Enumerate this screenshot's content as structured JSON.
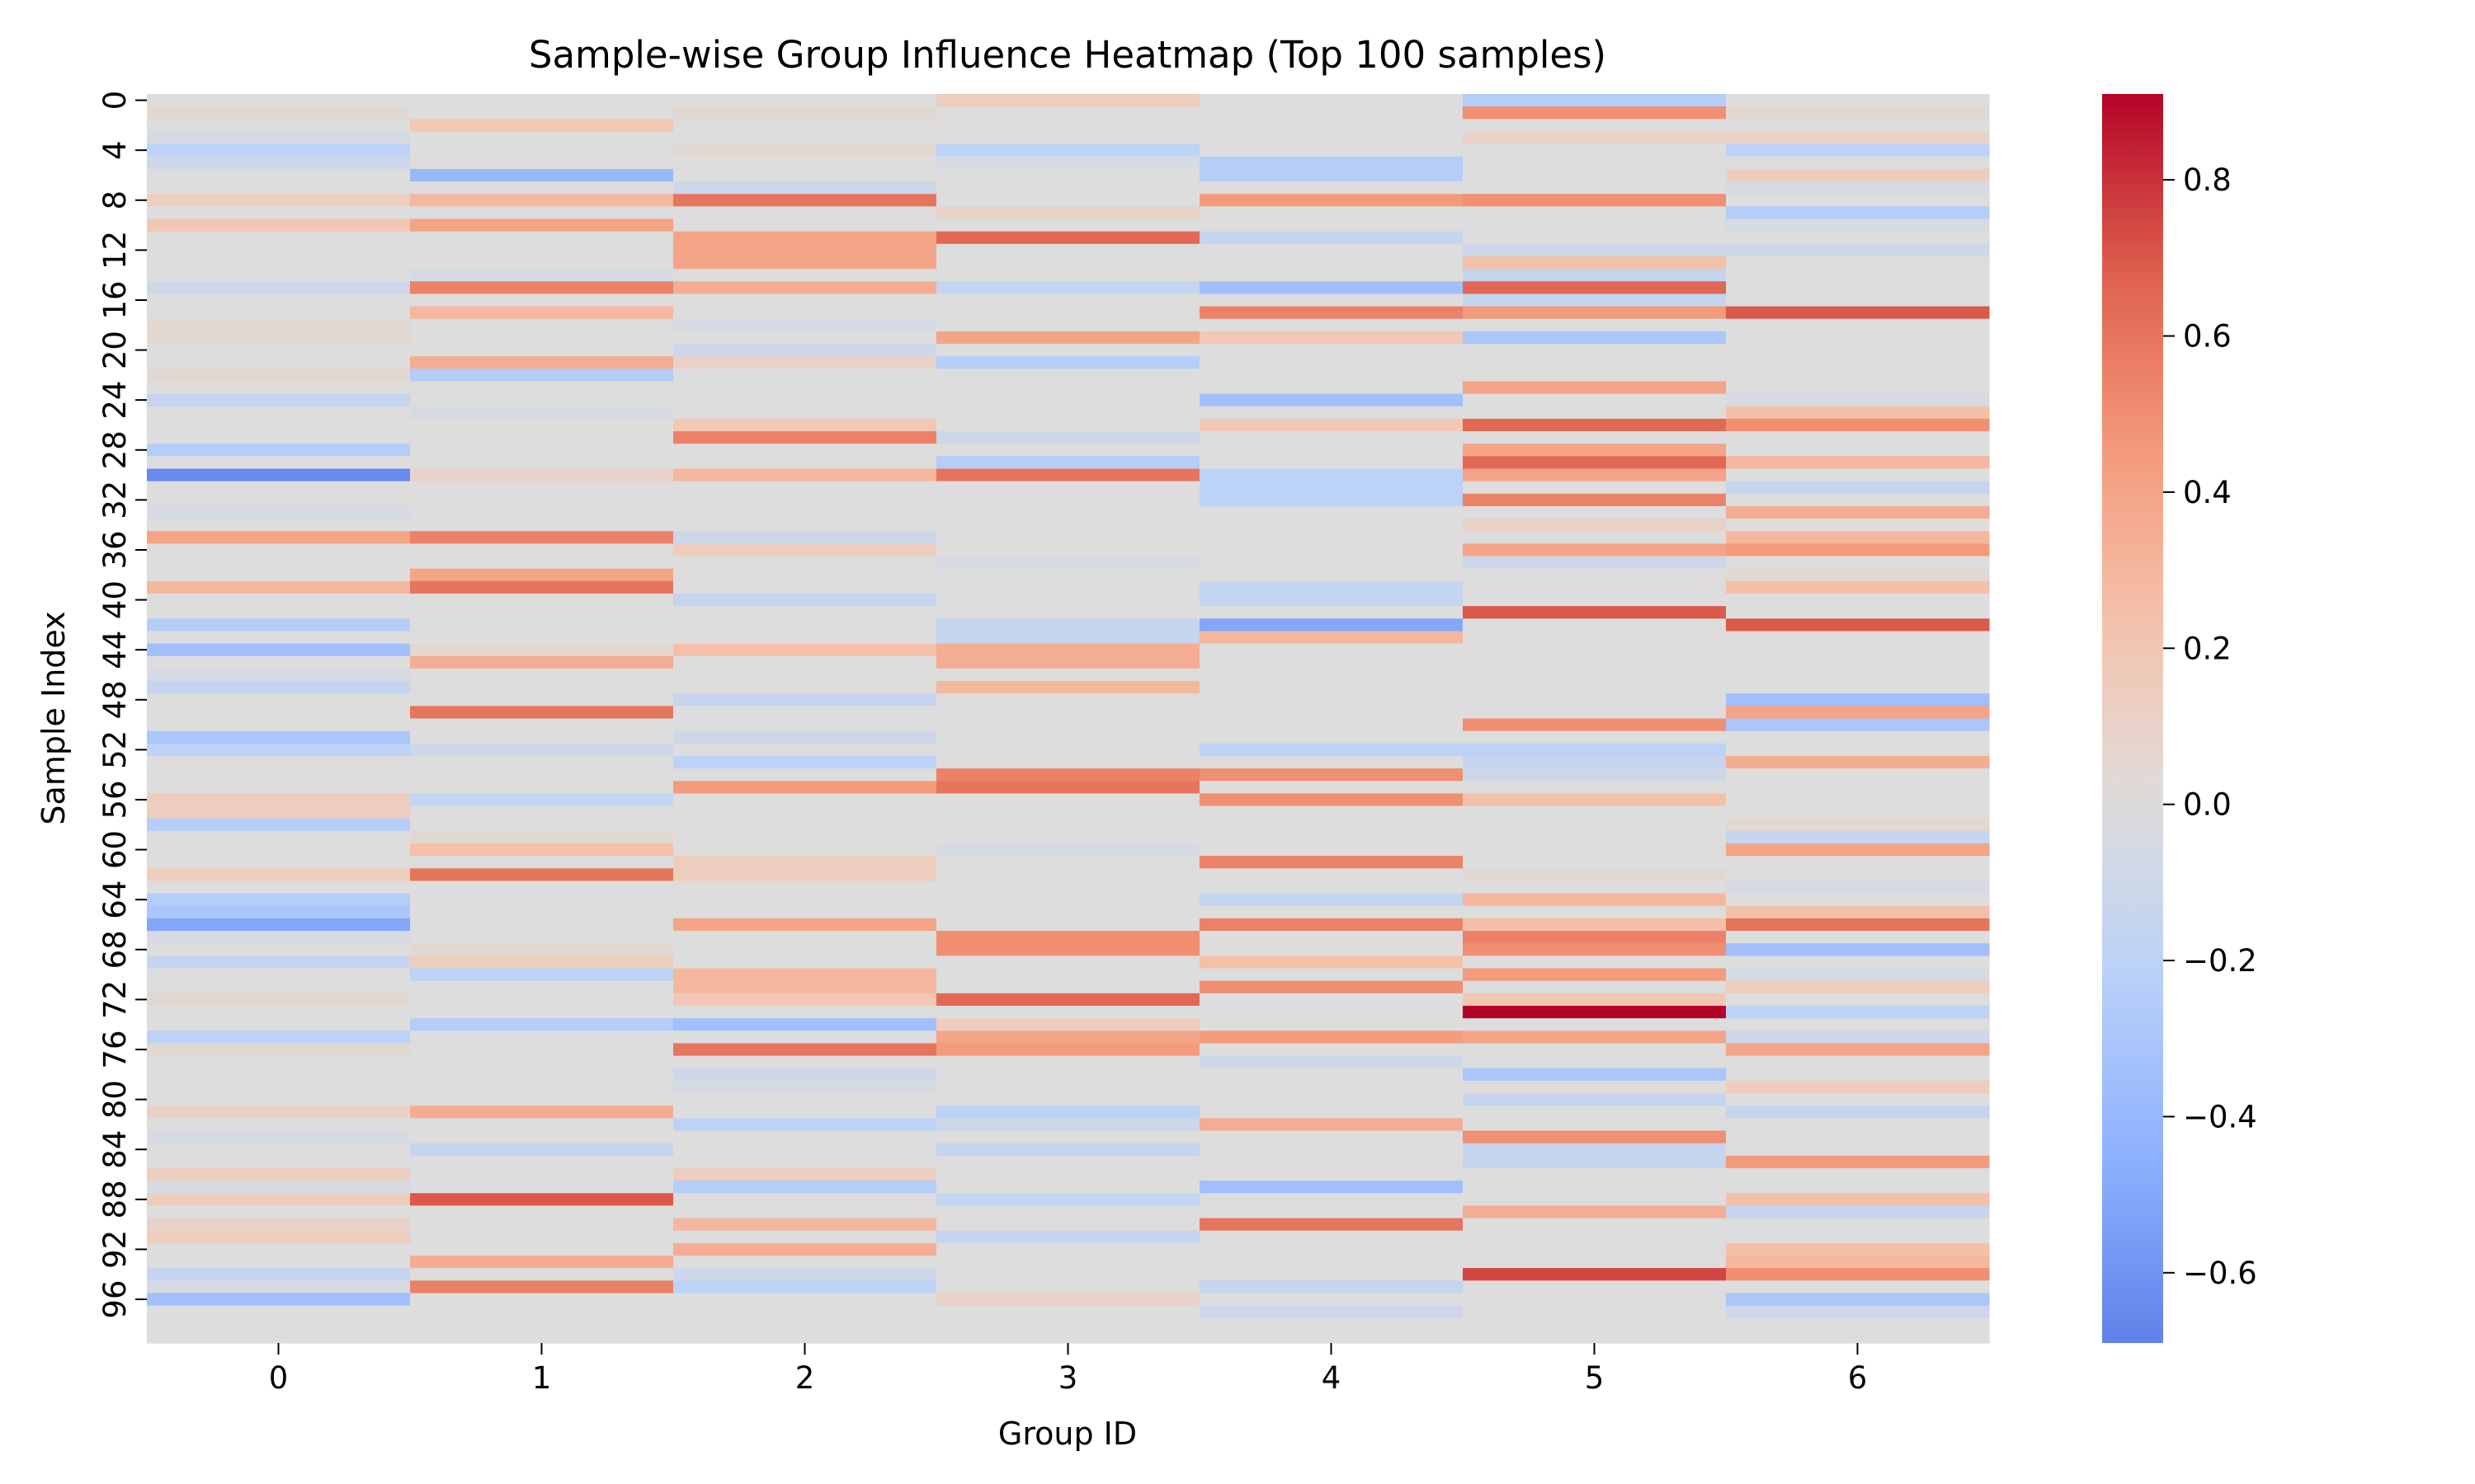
{
  "chart_data": {
    "type": "heatmap",
    "title": "Sample-wise Group Influence Heatmap (Top 100 samples)",
    "xlabel": "Group ID",
    "ylabel": "Sample Index",
    "x_categories": [
      "0",
      "1",
      "2",
      "3",
      "4",
      "5",
      "6"
    ],
    "y_tick_labels": [
      "0",
      "4",
      "8",
      "12",
      "16",
      "20",
      "24",
      "28",
      "32",
      "36",
      "40",
      "44",
      "48",
      "52",
      "56",
      "60",
      "64",
      "68",
      "72",
      "76",
      "80",
      "84",
      "88",
      "92",
      "96"
    ],
    "n_rows": 100,
    "colormap": "coolwarm",
    "center": 0.0,
    "vmin": -0.69,
    "vmax": 0.91,
    "colorbar_ticks": [
      "0.8",
      "0.6",
      "0.4",
      "0.2",
      "0.0",
      "−0.2",
      "−0.4",
      "−0.6"
    ],
    "colorbar_tick_values": [
      0.8,
      0.6,
      0.4,
      0.2,
      0.0,
      -0.2,
      -0.4,
      -0.6
    ],
    "default_value": 0.0,
    "values_sparse": [
      [
        0,
        5,
        -0.25
      ],
      [
        0,
        3,
        0.15
      ],
      [
        1,
        5,
        0.5
      ],
      [
        1,
        0,
        0.05
      ],
      [
        1,
        2,
        0.05
      ],
      [
        1,
        6,
        0.05
      ],
      [
        2,
        1,
        0.2
      ],
      [
        3,
        5,
        0.1
      ],
      [
        3,
        6,
        0.1
      ],
      [
        3,
        0,
        -0.05
      ],
      [
        4,
        0,
        -0.2
      ],
      [
        4,
        3,
        -0.2
      ],
      [
        4,
        6,
        -0.2
      ],
      [
        4,
        2,
        0.05
      ],
      [
        5,
        0,
        -0.1
      ],
      [
        5,
        4,
        -0.25
      ],
      [
        5,
        3,
        -0.05
      ],
      [
        6,
        1,
        -0.4
      ],
      [
        6,
        4,
        -0.25
      ],
      [
        6,
        6,
        0.15
      ],
      [
        7,
        2,
        -0.1
      ],
      [
        7,
        6,
        -0.05
      ],
      [
        8,
        0,
        0.15
      ],
      [
        8,
        1,
        0.3
      ],
      [
        8,
        2,
        0.6
      ],
      [
        8,
        4,
        0.45
      ],
      [
        8,
        5,
        0.5
      ],
      [
        9,
        3,
        0.1
      ],
      [
        9,
        6,
        -0.25
      ],
      [
        10,
        0,
        0.2
      ],
      [
        10,
        1,
        0.4
      ],
      [
        10,
        6,
        -0.05
      ],
      [
        11,
        3,
        0.65
      ],
      [
        11,
        2,
        0.4
      ],
      [
        11,
        4,
        -0.15
      ],
      [
        12,
        2,
        0.4
      ],
      [
        12,
        5,
        -0.1
      ],
      [
        12,
        6,
        -0.1
      ],
      [
        13,
        2,
        0.4
      ],
      [
        13,
        5,
        0.25
      ],
      [
        14,
        1,
        -0.05
      ],
      [
        14,
        5,
        -0.15
      ],
      [
        15,
        1,
        0.55
      ],
      [
        15,
        2,
        0.35
      ],
      [
        15,
        3,
        -0.15
      ],
      [
        15,
        4,
        -0.35
      ],
      [
        15,
        5,
        0.65
      ],
      [
        15,
        0,
        -0.1
      ],
      [
        16,
        5,
        -0.15
      ],
      [
        17,
        1,
        0.3
      ],
      [
        17,
        4,
        0.55
      ],
      [
        17,
        5,
        0.45
      ],
      [
        17,
        6,
        0.7
      ],
      [
        18,
        0,
        0.05
      ],
      [
        18,
        2,
        -0.05
      ],
      [
        19,
        3,
        0.4
      ],
      [
        19,
        4,
        0.2
      ],
      [
        19,
        5,
        -0.3
      ],
      [
        19,
        0,
        0.05
      ],
      [
        20,
        2,
        -0.1
      ],
      [
        21,
        1,
        0.35
      ],
      [
        21,
        2,
        0.1
      ],
      [
        21,
        3,
        -0.25
      ],
      [
        22,
        1,
        -0.25
      ],
      [
        22,
        0,
        0.05
      ],
      [
        23,
        5,
        0.4
      ],
      [
        24,
        0,
        -0.15
      ],
      [
        24,
        4,
        -0.35
      ],
      [
        24,
        6,
        -0.05
      ],
      [
        25,
        1,
        -0.05
      ],
      [
        25,
        6,
        0.25
      ],
      [
        26,
        2,
        0.2
      ],
      [
        26,
        4,
        0.2
      ],
      [
        26,
        5,
        0.65
      ],
      [
        26,
        6,
        0.5
      ],
      [
        27,
        2,
        0.55
      ],
      [
        27,
        3,
        -0.1
      ],
      [
        28,
        0,
        -0.25
      ],
      [
        28,
        5,
        0.4
      ],
      [
        29,
        3,
        -0.25
      ],
      [
        29,
        5,
        0.65
      ],
      [
        29,
        6,
        0.3
      ],
      [
        30,
        0,
        -0.65
      ],
      [
        30,
        1,
        0.1
      ],
      [
        30,
        2,
        0.3
      ],
      [
        30,
        3,
        0.6
      ],
      [
        30,
        4,
        -0.2
      ],
      [
        30,
        5,
        0.4
      ],
      [
        31,
        4,
        -0.2
      ],
      [
        31,
        6,
        -0.15
      ],
      [
        32,
        5,
        0.55
      ],
      [
        32,
        4,
        -0.2
      ],
      [
        33,
        6,
        0.35
      ],
      [
        33,
        0,
        -0.05
      ],
      [
        34,
        5,
        0.1
      ],
      [
        35,
        0,
        0.4
      ],
      [
        35,
        1,
        0.55
      ],
      [
        35,
        2,
        -0.1
      ],
      [
        35,
        6,
        0.3
      ],
      [
        36,
        2,
        0.15
      ],
      [
        36,
        5,
        0.4
      ],
      [
        36,
        6,
        0.45
      ],
      [
        37,
        3,
        -0.05
      ],
      [
        37,
        5,
        -0.1
      ],
      [
        38,
        1,
        0.4
      ],
      [
        38,
        6,
        0.05
      ],
      [
        39,
        0,
        0.3
      ],
      [
        39,
        1,
        0.6
      ],
      [
        39,
        4,
        -0.15
      ],
      [
        39,
        6,
        0.25
      ],
      [
        40,
        2,
        -0.15
      ],
      [
        40,
        4,
        -0.15
      ],
      [
        41,
        5,
        0.7
      ],
      [
        42,
        0,
        -0.25
      ],
      [
        42,
        3,
        -0.15
      ],
      [
        42,
        4,
        -0.5
      ],
      [
        42,
        6,
        0.7
      ],
      [
        43,
        4,
        0.3
      ],
      [
        43,
        3,
        -0.15
      ],
      [
        44,
        0,
        -0.35
      ],
      [
        44,
        2,
        0.25
      ],
      [
        44,
        3,
        0.35
      ],
      [
        44,
        1,
        0.05
      ],
      [
        45,
        1,
        0.35
      ],
      [
        45,
        3,
        0.35
      ],
      [
        46,
        0,
        -0.05
      ],
      [
        47,
        0,
        -0.15
      ],
      [
        47,
        3,
        0.3
      ],
      [
        48,
        2,
        -0.15
      ],
      [
        48,
        6,
        -0.35
      ],
      [
        49,
        1,
        0.6
      ],
      [
        49,
        6,
        0.4
      ],
      [
        50,
        5,
        0.5
      ],
      [
        50,
        6,
        -0.3
      ],
      [
        51,
        0,
        -0.3
      ],
      [
        51,
        2,
        -0.1
      ],
      [
        52,
        0,
        -0.2
      ],
      [
        52,
        1,
        -0.1
      ],
      [
        52,
        4,
        -0.2
      ],
      [
        52,
        5,
        -0.2
      ],
      [
        53,
        2,
        -0.2
      ],
      [
        53,
        6,
        0.35
      ],
      [
        53,
        5,
        -0.15
      ],
      [
        54,
        3,
        0.55
      ],
      [
        54,
        4,
        0.5
      ],
      [
        54,
        5,
        -0.1
      ],
      [
        55,
        2,
        0.45
      ],
      [
        55,
        3,
        0.6
      ],
      [
        56,
        0,
        0.15
      ],
      [
        56,
        1,
        -0.15
      ],
      [
        56,
        4,
        0.5
      ],
      [
        56,
        5,
        0.25
      ],
      [
        57,
        0,
        0.15
      ],
      [
        58,
        0,
        -0.25
      ],
      [
        58,
        6,
        0.05
      ],
      [
        59,
        6,
        -0.15
      ],
      [
        59,
        1,
        0.05
      ],
      [
        60,
        1,
        0.25
      ],
      [
        60,
        6,
        0.4
      ],
      [
        60,
        3,
        -0.05
      ],
      [
        61,
        4,
        0.55
      ],
      [
        61,
        2,
        0.15
      ],
      [
        62,
        0,
        0.15
      ],
      [
        62,
        1,
        0.6
      ],
      [
        62,
        2,
        0.15
      ],
      [
        62,
        5,
        0.05
      ],
      [
        63,
        6,
        -0.05
      ],
      [
        64,
        0,
        -0.25
      ],
      [
        64,
        5,
        0.3
      ],
      [
        64,
        4,
        -0.15
      ],
      [
        65,
        0,
        -0.3
      ],
      [
        65,
        6,
        0.25
      ],
      [
        66,
        0,
        -0.5
      ],
      [
        66,
        2,
        0.4
      ],
      [
        66,
        4,
        0.55
      ],
      [
        66,
        5,
        0.25
      ],
      [
        66,
        6,
        0.6
      ],
      [
        67,
        3,
        0.5
      ],
      [
        67,
        5,
        0.55
      ],
      [
        67,
        0,
        -0.05
      ],
      [
        68,
        3,
        0.5
      ],
      [
        68,
        5,
        0.5
      ],
      [
        68,
        6,
        -0.35
      ],
      [
        68,
        1,
        0.05
      ],
      [
        69,
        0,
        -0.15
      ],
      [
        69,
        1,
        0.15
      ],
      [
        69,
        4,
        0.25
      ],
      [
        70,
        1,
        -0.2
      ],
      [
        70,
        2,
        0.3
      ],
      [
        70,
        5,
        0.45
      ],
      [
        70,
        6,
        -0.05
      ],
      [
        71,
        2,
        0.3
      ],
      [
        71,
        4,
        0.5
      ],
      [
        71,
        6,
        0.15
      ],
      [
        72,
        2,
        0.2
      ],
      [
        72,
        3,
        0.65
      ],
      [
        72,
        5,
        0.2
      ],
      [
        72,
        0,
        0.05
      ],
      [
        73,
        5,
        0.91
      ],
      [
        73,
        6,
        -0.2
      ],
      [
        74,
        1,
        -0.25
      ],
      [
        74,
        2,
        -0.35
      ],
      [
        74,
        3,
        0.15
      ],
      [
        75,
        0,
        -0.2
      ],
      [
        75,
        3,
        0.4
      ],
      [
        75,
        4,
        0.45
      ],
      [
        75,
        5,
        0.4
      ],
      [
        75,
        6,
        -0.1
      ],
      [
        76,
        2,
        0.6
      ],
      [
        76,
        3,
        0.45
      ],
      [
        76,
        6,
        0.4
      ],
      [
        76,
        0,
        0.05
      ],
      [
        77,
        4,
        -0.1
      ],
      [
        78,
        5,
        -0.3
      ],
      [
        78,
        2,
        -0.1
      ],
      [
        79,
        6,
        0.15
      ],
      [
        79,
        2,
        -0.05
      ],
      [
        80,
        5,
        -0.15
      ],
      [
        81,
        1,
        0.35
      ],
      [
        81,
        3,
        -0.2
      ],
      [
        81,
        0,
        0.1
      ],
      [
        81,
        6,
        -0.15
      ],
      [
        82,
        2,
        -0.2
      ],
      [
        82,
        4,
        0.35
      ],
      [
        82,
        3,
        -0.1
      ],
      [
        83,
        5,
        0.5
      ],
      [
        83,
        0,
        -0.05
      ],
      [
        84,
        1,
        -0.15
      ],
      [
        84,
        3,
        -0.15
      ],
      [
        84,
        5,
        -0.15
      ],
      [
        85,
        6,
        0.45
      ],
      [
        85,
        5,
        -0.15
      ],
      [
        86,
        0,
        0.15
      ],
      [
        86,
        2,
        0.15
      ],
      [
        87,
        2,
        -0.25
      ],
      [
        87,
        4,
        -0.35
      ],
      [
        87,
        0,
        -0.05
      ],
      [
        88,
        0,
        0.15
      ],
      [
        88,
        1,
        0.7
      ],
      [
        88,
        3,
        -0.15
      ],
      [
        88,
        6,
        0.25
      ],
      [
        89,
        5,
        0.35
      ],
      [
        89,
        6,
        -0.15
      ],
      [
        90,
        2,
        0.3
      ],
      [
        90,
        4,
        0.6
      ],
      [
        90,
        0,
        0.1
      ],
      [
        91,
        0,
        0.15
      ],
      [
        91,
        3,
        -0.15
      ],
      [
        92,
        2,
        0.35
      ],
      [
        92,
        6,
        0.25
      ],
      [
        93,
        1,
        0.35
      ],
      [
        93,
        6,
        0.3
      ],
      [
        94,
        0,
        -0.15
      ],
      [
        94,
        5,
        0.75
      ],
      [
        94,
        6,
        0.5
      ],
      [
        94,
        2,
        -0.1
      ],
      [
        95,
        1,
        0.55
      ],
      [
        95,
        2,
        -0.2
      ],
      [
        95,
        4,
        -0.15
      ],
      [
        95,
        0,
        -0.05
      ],
      [
        96,
        0,
        -0.35
      ],
      [
        96,
        3,
        0.1
      ],
      [
        96,
        6,
        -0.3
      ],
      [
        97,
        4,
        -0.1
      ],
      [
        97,
        6,
        -0.1
      ]
    ]
  }
}
